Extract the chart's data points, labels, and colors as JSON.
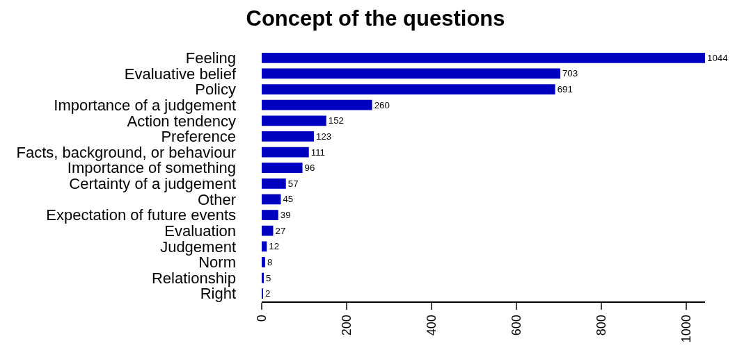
{
  "chart_data": {
    "type": "bar",
    "orientation": "horizontal",
    "title": "Concept of the questions",
    "categories": [
      "Feeling",
      "Evaluative belief",
      "Policy",
      "Importance of a judgement",
      "Action tendency",
      "Preference",
      "Facts, background, or behaviour",
      "Importance of something",
      "Certainty of a judgement",
      "Other",
      "Expectation of future events",
      "Evaluation",
      "Judgement",
      "Norm",
      "Relationship",
      "Right"
    ],
    "values": [
      1044,
      703,
      691,
      260,
      152,
      123,
      111,
      96,
      57,
      45,
      39,
      27,
      12,
      8,
      5,
      2
    ],
    "color": "#0000c0",
    "data_labels": true,
    "xlim": [
      0,
      1044
    ],
    "xticks": [
      0,
      200,
      400,
      600,
      800,
      1000
    ]
  }
}
